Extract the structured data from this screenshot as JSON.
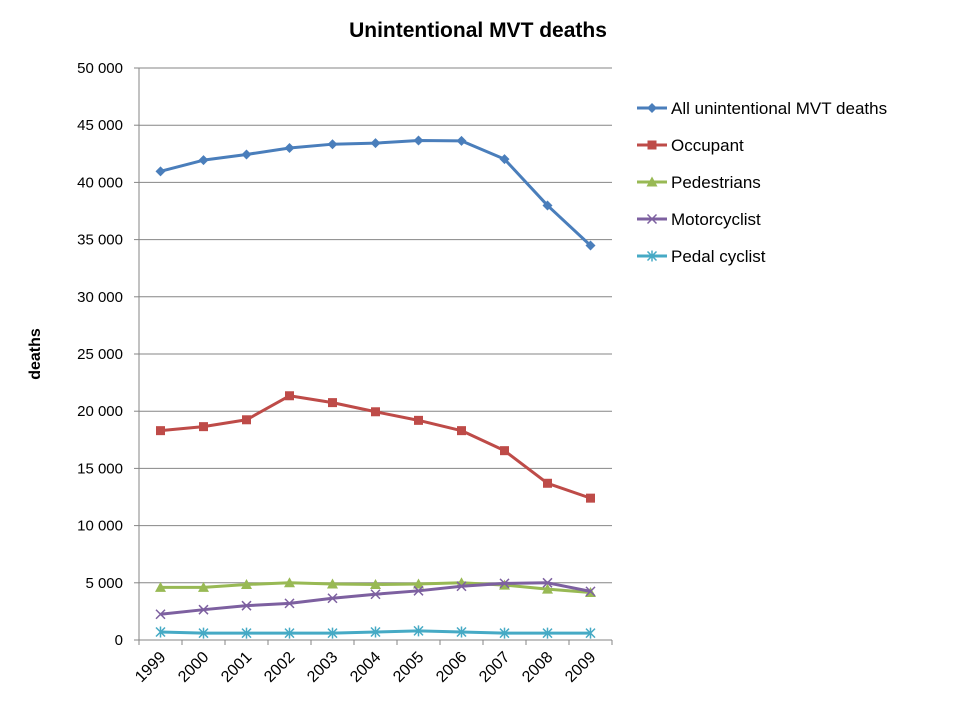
{
  "chart_data": {
    "type": "line",
    "title": "Unintentional MVT deaths",
    "xlabel": "",
    "ylabel": "deaths",
    "ylim": [
      0,
      50000
    ],
    "yticks": [
      "0",
      "5 000",
      "10 000",
      "15 000",
      "20 000",
      "25 000",
      "30 000",
      "35 000",
      "40 000",
      "45 000",
      "50 000"
    ],
    "ytick_values": [
      0,
      5000,
      10000,
      15000,
      20000,
      25000,
      30000,
      35000,
      40000,
      45000,
      50000
    ],
    "categories": [
      "1999",
      "2000",
      "2001",
      "2002",
      "2003",
      "2004",
      "2005",
      "2006",
      "2007",
      "2008",
      "2009"
    ],
    "grid": "horizontal",
    "legend_position": "right",
    "series": [
      {
        "name": "All unintentional MVT deaths",
        "color": "#4a7ebb",
        "marker": "diamond",
        "values": [
          40965,
          41945,
          42443,
          43005,
          43340,
          43432,
          43667,
          43628,
          42031,
          37985,
          34485
        ]
      },
      {
        "name": "Occupant",
        "color": "#be4b48",
        "marker": "square",
        "values": [
          18300,
          18650,
          19250,
          21350,
          20750,
          19950,
          19200,
          18300,
          16550,
          13700,
          12400
        ]
      },
      {
        "name": "Pedestrians",
        "color": "#98b954",
        "marker": "triangle",
        "values": [
          4600,
          4600,
          4850,
          5000,
          4900,
          4850,
          4900,
          5000,
          4800,
          4450,
          4150
        ]
      },
      {
        "name": "Motorcyclist",
        "color": "#7d60a0",
        "marker": "x",
        "values": [
          2250,
          2650,
          3000,
          3200,
          3650,
          4000,
          4300,
          4700,
          4950,
          5000,
          4250
        ]
      },
      {
        "name": "Pedal cyclist",
        "color": "#46aac5",
        "marker": "star",
        "values": [
          700,
          600,
          600,
          600,
          600,
          700,
          800,
          700,
          600,
          600,
          600
        ]
      }
    ]
  }
}
